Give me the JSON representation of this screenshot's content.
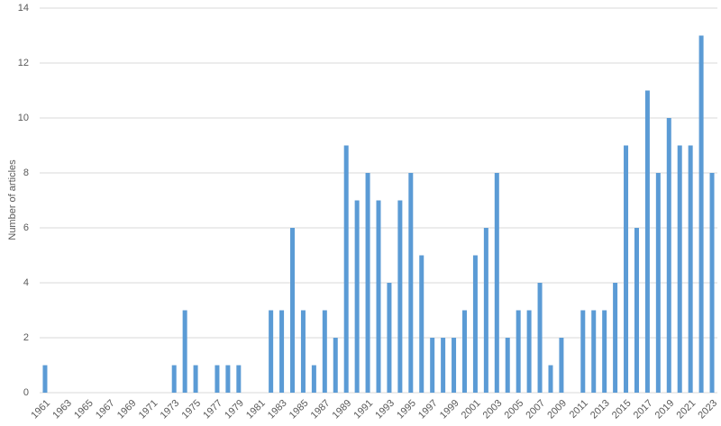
{
  "chart_data": {
    "type": "bar",
    "y_label": "Number of articles",
    "categories": [
      "1961",
      null,
      "1963",
      null,
      "1965",
      null,
      "1967",
      null,
      "1969",
      null,
      "1971",
      null,
      "1973",
      null,
      "1975",
      null,
      "1977",
      null,
      "1979",
      null,
      "1981",
      null,
      "1983",
      null,
      "1985",
      null,
      "1987",
      null,
      "1989",
      null,
      "1991",
      null,
      "1993",
      null,
      "1995",
      null,
      "1997",
      null,
      "1999",
      null,
      "2001",
      null,
      "2003",
      null,
      "2005",
      null,
      "2007",
      null,
      "2009",
      null,
      "2011",
      null,
      "2013",
      null,
      "2015",
      null,
      "2017",
      null,
      "2019",
      null,
      "2021",
      null,
      "2023"
    ],
    "values": [
      1,
      0,
      0,
      0,
      0,
      0,
      0,
      0,
      0,
      0,
      0,
      0,
      1,
      3,
      1,
      0,
      1,
      1,
      1,
      0,
      0,
      3,
      3,
      6,
      3,
      1,
      3,
      2,
      9,
      7,
      8,
      7,
      4,
      7,
      8,
      5,
      2,
      2,
      2,
      3,
      5,
      6,
      8,
      2,
      3,
      3,
      4,
      1,
      2,
      0,
      3,
      3,
      3,
      4,
      9,
      6,
      11,
      8,
      10,
      9,
      9,
      13,
      8
    ],
    "color": "#5b9bd5",
    "ylim": [
      0,
      14
    ],
    "yticks": [
      0,
      2,
      4,
      6,
      8,
      10,
      12,
      14
    ],
    "grid": true
  }
}
